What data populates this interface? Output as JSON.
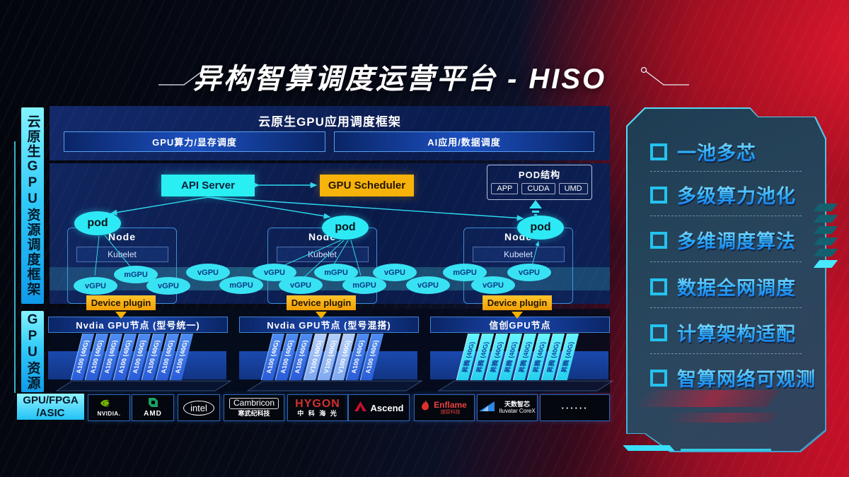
{
  "title": "异构智算调度运营平台 - HISO",
  "sidebar": {
    "framework": "云原生GPU资源调度框架",
    "gpu_resource": "GPU资源",
    "hardware_line1": "GPU/FPGA",
    "hardware_line2": "/ASIC"
  },
  "scheduling_panel": {
    "header": "云原生GPU应用调度框架",
    "left_bar": "GPU算力/显存调度",
    "right_bar": "AI应用/数据调度"
  },
  "cluster": {
    "api_server": "API Server",
    "gpu_scheduler": "GPU Scheduler",
    "pod_structure": {
      "title": "POD结构",
      "items": [
        "APP",
        "CUDA",
        "UMD"
      ]
    },
    "pod_label": "pod",
    "node_title": "Node",
    "kubelet_label": "Kubelet",
    "device_plugin_label": "Device plugin",
    "gpu_ellipses": [
      "mGPU",
      "vGPU",
      "vGPU",
      "vGPU",
      "mGPU",
      "vGPU",
      "vGPU",
      "mGPU",
      "mGPU",
      "vGPU",
      "vGPU",
      "mGPU",
      "vGPU",
      "vGPU"
    ]
  },
  "gpu_sections": [
    {
      "title": "Nvdia GPU节点 (型号统一)",
      "cards": [
        {
          "label": "A100 (40G)",
          "style": "blue"
        },
        {
          "label": "A100 (40G)",
          "style": "blue"
        },
        {
          "label": "A100 (40G)",
          "style": "blue"
        },
        {
          "label": "A100 (40G)",
          "style": "blue"
        },
        {
          "label": "A100 (40G)",
          "style": "blue"
        },
        {
          "label": "A100 (40G)",
          "style": "blue"
        },
        {
          "label": "A100 (40G)",
          "style": "blue"
        },
        {
          "label": "A100 (40G)",
          "style": "blue"
        }
      ]
    },
    {
      "title": "Nvdia GPU节点 (型号混搭)",
      "cards": [
        {
          "label": "A100 (40G)",
          "style": "blue"
        },
        {
          "label": "A100 (40G)",
          "style": "blue"
        },
        {
          "label": "A100 (40G)",
          "style": "blue"
        },
        {
          "label": "V100 (40G)",
          "style": "light"
        },
        {
          "label": "V100 (40G)",
          "style": "light"
        },
        {
          "label": "V100 (40G)",
          "style": "light"
        },
        {
          "label": "A100 (40G)",
          "style": "blue"
        },
        {
          "label": "A100 (40G)",
          "style": "blue"
        }
      ]
    },
    {
      "title": "信创GPU节点",
      "cards": [
        {
          "label": "昇腾 (40G)",
          "style": "cyan"
        },
        {
          "label": "昇腾 (40G)",
          "style": "cyan"
        },
        {
          "label": "昇腾 (40G)",
          "style": "cyan"
        },
        {
          "label": "昇腾 (40G)",
          "style": "cyan"
        },
        {
          "label": "昇腾 (40G)",
          "style": "cyan"
        },
        {
          "label": "昇腾 (40G)",
          "style": "cyan"
        },
        {
          "label": "昇腾 (40G)",
          "style": "cyan"
        },
        {
          "label": "昇腾 (40G)",
          "style": "cyan"
        }
      ]
    }
  ],
  "vendors": [
    {
      "logo": "nvidia-icon",
      "name": "NVIDIA."
    },
    {
      "logo": "amd-icon",
      "name": "AMD"
    },
    {
      "logo": "intel-icon",
      "name": "intel"
    },
    {
      "logo": "cambricon-icon",
      "name": "Cambricon",
      "sub": "寒武纪科技"
    },
    {
      "logo": "hygon-icon",
      "name": "HYGON",
      "sub": "中 科 海 光"
    },
    {
      "logo": "ascend-icon",
      "name": "Ascend"
    },
    {
      "logo": "enflame-icon",
      "name": "Enflame",
      "sub": "燧原科技"
    },
    {
      "logo": "iluvatar-icon",
      "name": "天数智芯",
      "sub": "Iluvatar CoreX"
    },
    {
      "logo": "dots-icon",
      "name": "······"
    }
  ],
  "features": [
    "一池多芯",
    "多级算力池化",
    "多维调度算法",
    "数据全网调度",
    "计算架构适配",
    "智算网络可观测"
  ],
  "colors": {
    "accent_cyan": "#35e0f5",
    "accent_yellow": "#f7b30a",
    "accent_red": "#d01228",
    "card_blue": "#3a6fe0",
    "panel_blue": "#0c2156"
  }
}
